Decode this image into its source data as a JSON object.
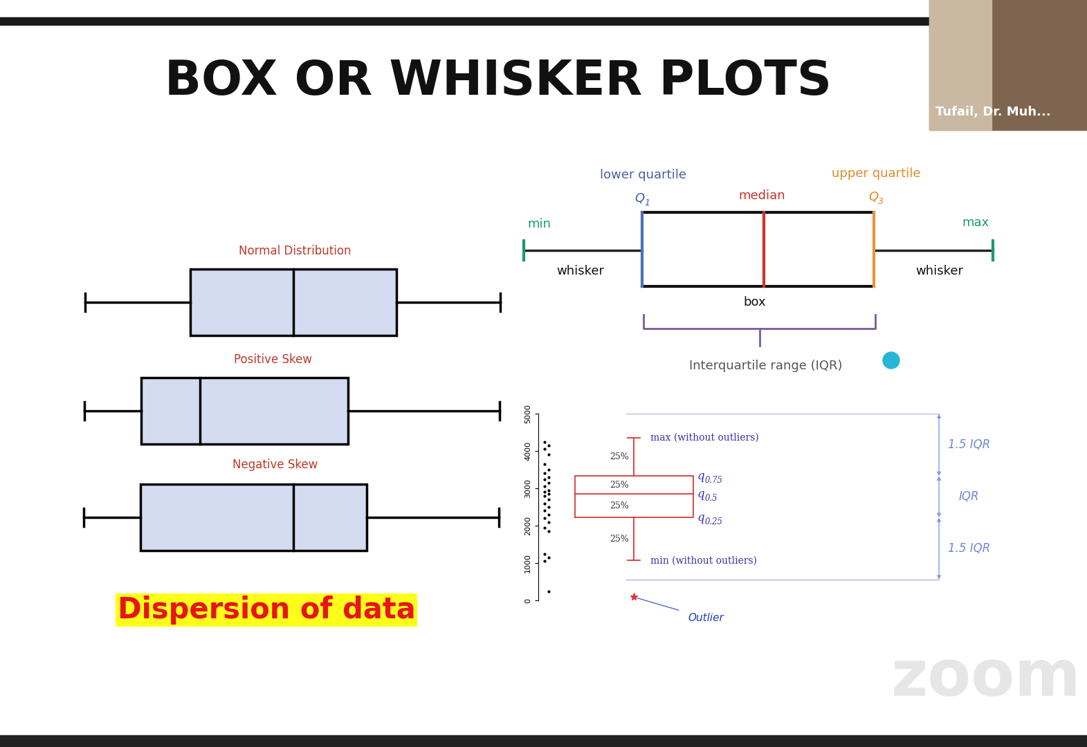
{
  "header": {
    "title": "BOX OR WHISKER PLOTS"
  },
  "webcam": {
    "name": "Tufail, Dr. Muh..."
  },
  "skew_examples": {
    "labels": [
      "Normal Distribution",
      "Positive Skew",
      "Negative Skew"
    ],
    "caption": "Dispersion of data"
  },
  "anatomy": {
    "lower_quartile": "lower quartile",
    "q1": "Q1",
    "median": "median",
    "upper_quartile": "upper quartile",
    "q3": "Q3",
    "min": "min",
    "max": "max",
    "whisker_left": "whisker",
    "whisker_right": "whisker",
    "box": "box",
    "iqr": "Interquartile range (IQR)"
  },
  "chart_data": {
    "type": "box",
    "ylim": [
      0,
      5000
    ],
    "yticks": [
      0,
      1000,
      2000,
      3000,
      4000,
      5000
    ],
    "points": [
      4250,
      4150,
      4050,
      3900,
      3650,
      3500,
      3400,
      3300,
      3250,
      3150,
      3050,
      2950,
      2900,
      2850,
      2800,
      2700,
      2600,
      2500,
      2400,
      2300,
      2200,
      2100,
      1950,
      1850,
      1250,
      1150,
      1050,
      250
    ],
    "quartiles": [
      {
        "name": "q0.75",
        "value": 3330
      },
      {
        "name": "q0.5",
        "value": 2850
      },
      {
        "name": "q0.25",
        "value": 2220
      }
    ],
    "whisker_max": {
      "label": "max (without outliers)",
      "value": 4350
    },
    "whisker_min": {
      "label": "min (without outliers)",
      "value": 1070
    },
    "outliers": [
      90
    ],
    "outlier_label": "Outlier",
    "segment_labels": [
      "25%",
      "25%",
      "25%",
      "25%"
    ],
    "range_labels": [
      "1.5 IQR",
      "IQR",
      "1.5 IQR"
    ]
  },
  "watermark": "zoom"
}
